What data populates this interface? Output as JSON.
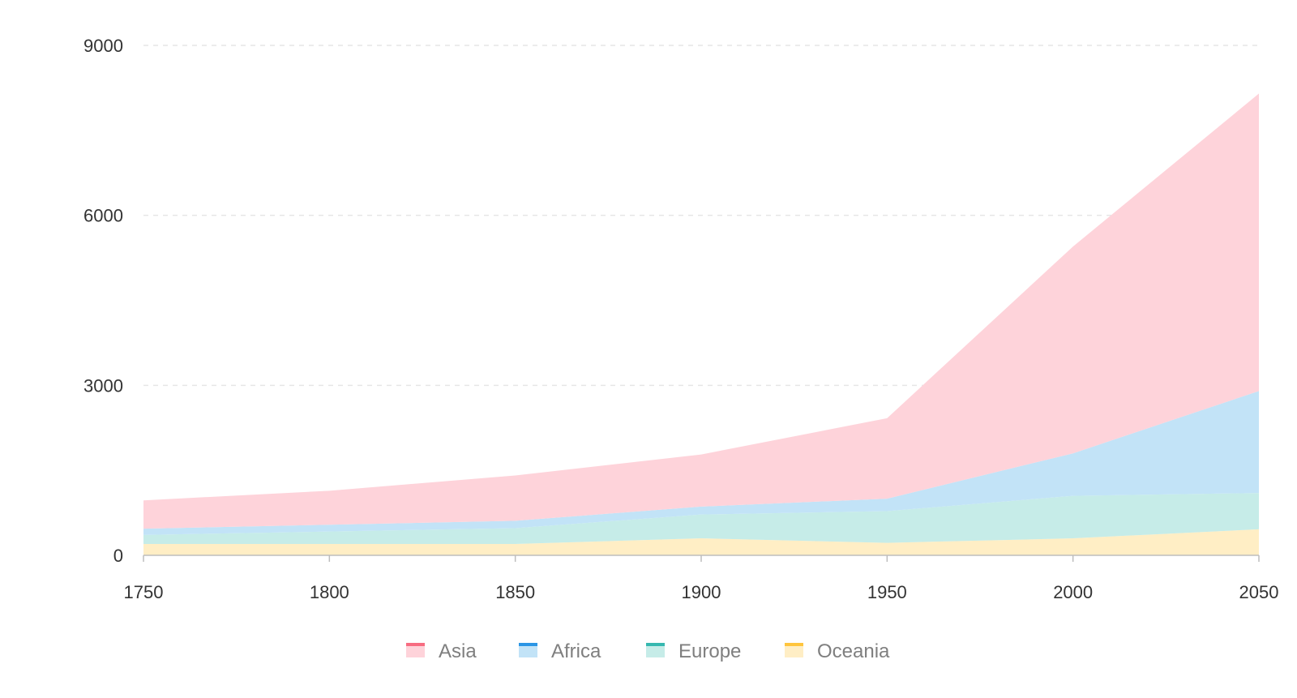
{
  "chart_data": {
    "type": "area",
    "stacked": true,
    "title": "",
    "xlabel": "",
    "ylabel": "",
    "x": [
      1750,
      1800,
      1850,
      1900,
      1950,
      2000,
      2050
    ],
    "x_tick_labels": [
      "1750",
      "1800",
      "1850",
      "1900",
      "1950",
      "2000",
      "2050"
    ],
    "y_ticks": [
      0,
      3000,
      6000,
      9000
    ],
    "y_tick_labels": [
      "0",
      "3000",
      "6000",
      "9000"
    ],
    "ylim": [
      0,
      9000
    ],
    "grid": true,
    "legend_position": "bottom",
    "series": [
      {
        "name": "Oceania",
        "values": [
          200,
          200,
          200,
          300,
          220,
          300,
          460
        ],
        "color": "#ffeec5",
        "legend_color": "#ffc53d"
      },
      {
        "name": "Europe",
        "values": [
          160,
          220,
          280,
          420,
          560,
          750,
          640
        ],
        "color": "#c6ece8",
        "legend_color": "#36b8b0"
      },
      {
        "name": "Africa",
        "values": [
          110,
          120,
          130,
          140,
          220,
          750,
          1800
        ],
        "color": "#c2e3f7",
        "legend_color": "#2b95e5"
      },
      {
        "name": "Asia",
        "values": [
          500,
          600,
          800,
          920,
          1420,
          3650,
          5250
        ],
        "color": "#fed3da",
        "legend_color": "#f76c81"
      }
    ],
    "legend_order": [
      "Asia",
      "Africa",
      "Europe",
      "Oceania"
    ]
  }
}
